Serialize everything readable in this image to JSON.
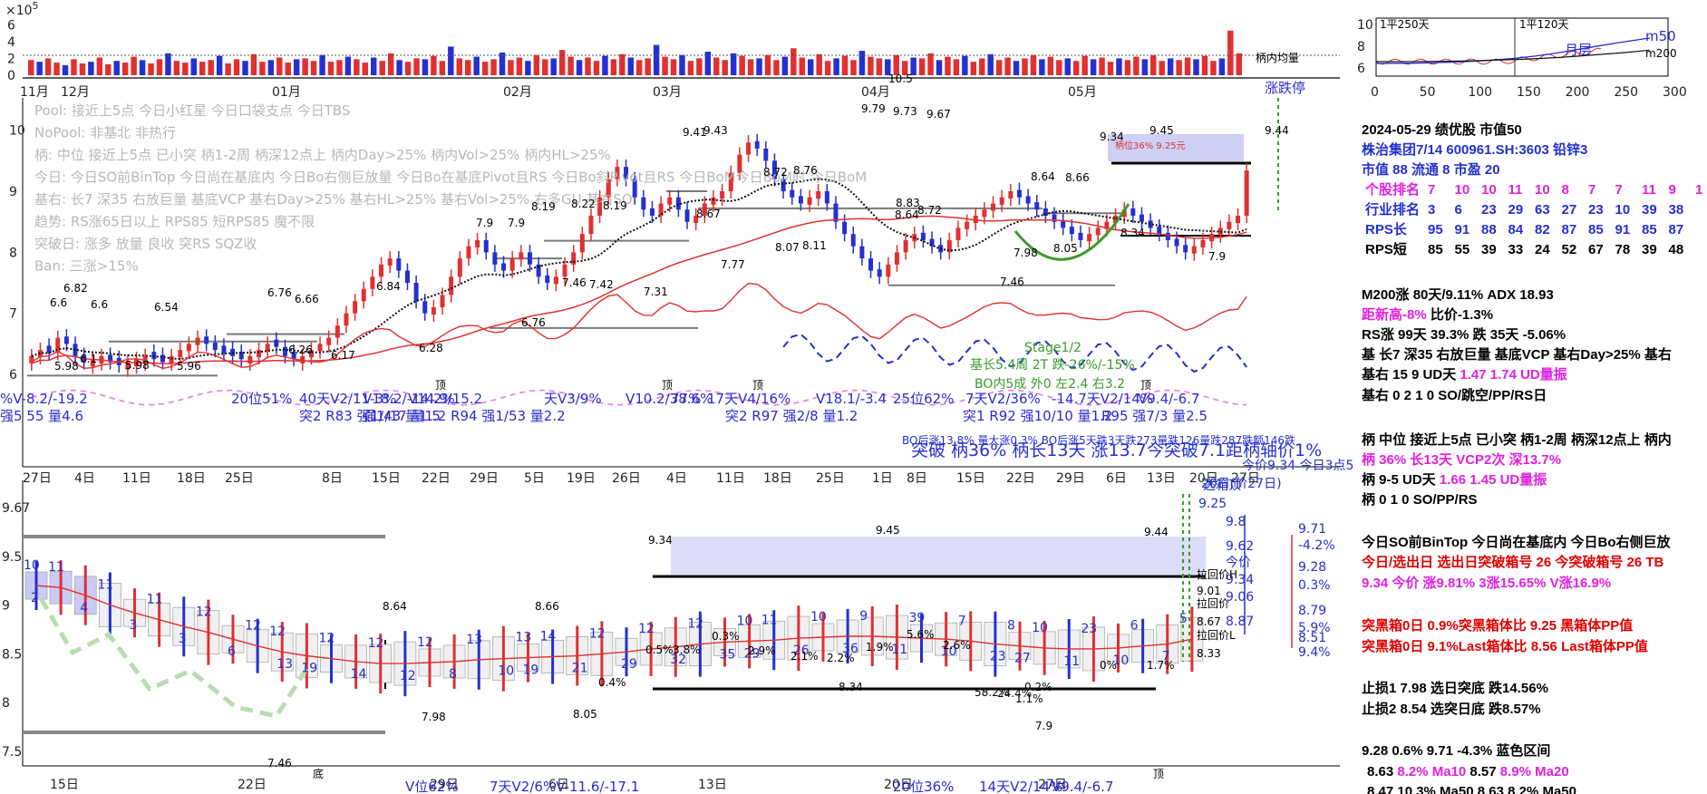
{
  "chart_data": [
    {
      "type": "bar",
      "panel": "volume",
      "multiplier_label": "×10",
      "multiplier_exp": "5",
      "yticks": [
        "6",
        "4",
        "2",
        "0"
      ],
      "ylim": [
        0,
        7
      ],
      "month_labels": [
        "11月",
        "12月",
        "01月",
        "02月",
        "03月",
        "04月",
        "05月"
      ],
      "avg_label": "柄内均量",
      "values": [
        1.8,
        1.6,
        2.0,
        1.5,
        1.2,
        1.9,
        1.4,
        1.6,
        2.1,
        1.3,
        1.7,
        1.5,
        2.2,
        1.8,
        1.4,
        1.9,
        2.6,
        1.7,
        1.5,
        2.0,
        1.6,
        1.8,
        2.3,
        1.4,
        1.9,
        1.7,
        2.5,
        1.6,
        1.8,
        2.1,
        1.5,
        1.9,
        2.0,
        1.7,
        2.4,
        1.6,
        1.8,
        2.2,
        1.9,
        1.5,
        2.1,
        1.7,
        2.6,
        1.8,
        1.6,
        2.0,
        1.9,
        2.3,
        1.7,
        3.4,
        2.0,
        1.8,
        2.2,
        1.6,
        1.9,
        2.7,
        1.8,
        2.1,
        1.7,
        2.4,
        1.9,
        2.0,
        3.0,
        2.2,
        1.8,
        2.1,
        1.7,
        2.3,
        1.9,
        2.5,
        2.1,
        1.8,
        2.0,
        3.6,
        2.2,
        1.9,
        2.4,
        1.7,
        2.0,
        2.8,
        2.1,
        1.8,
        2.6,
        2.3,
        1.9,
        2.0,
        2.4,
        1.8,
        2.2,
        3.2,
        2.1,
        1.9,
        2.5,
        1.7,
        2.0,
        2.3,
        1.8,
        2.9,
        2.2,
        2.0,
        1.9,
        2.4,
        1.7,
        2.1,
        2.0,
        2.6,
        1.8,
        2.2,
        1.9,
        2.3,
        1.6,
        2.0,
        2.5,
        1.8,
        2.1,
        1.7,
        2.0,
        2.4,
        1.9,
        2.2,
        1.8,
        2.0,
        1.7,
        2.3,
        1.9,
        2.1,
        1.6,
        2.0,
        1.8,
        2.2,
        1.9,
        2.4,
        1.7,
        2.0,
        1.8,
        2.1,
        1.9,
        2.3,
        1.7,
        2.0,
        5.3,
        2.6
      ]
    },
    {
      "type": "line",
      "panel": "price-daily",
      "yticks": [
        "10",
        "9",
        "8",
        "7",
        "6"
      ],
      "ylim": [
        5.6,
        10.5
      ],
      "close": [
        6.3,
        6.4,
        6.35,
        6.6,
        6.5,
        6.3,
        6.2,
        6.25,
        6.3,
        6.2,
        6.15,
        6.2,
        6.25,
        6.3,
        6.25,
        6.2,
        6.3,
        6.4,
        6.5,
        6.6,
        6.5,
        6.4,
        6.35,
        6.3,
        6.25,
        6.3,
        6.4,
        6.5,
        6.45,
        6.3,
        6.25,
        6.3,
        6.4,
        6.5,
        6.6,
        6.8,
        7.0,
        7.2,
        7.4,
        7.6,
        7.8,
        7.9,
        7.7,
        7.5,
        7.2,
        7.0,
        7.1,
        7.3,
        7.6,
        7.9,
        8.1,
        8.2,
        8.0,
        7.8,
        7.7,
        7.9,
        8.0,
        7.8,
        7.6,
        7.5,
        7.6,
        7.8,
        8.0,
        8.3,
        8.6,
        8.9,
        9.2,
        9.4,
        9.2,
        8.9,
        8.7,
        8.6,
        8.8,
        8.9,
        8.7,
        8.5,
        8.6,
        8.8,
        8.9,
        9.0,
        9.3,
        9.6,
        9.8,
        9.7,
        9.5,
        9.2,
        9.0,
        8.9,
        8.8,
        8.9,
        9.0,
        8.8,
        8.5,
        8.3,
        8.1,
        7.9,
        7.7,
        7.6,
        7.8,
        8.0,
        8.2,
        8.3,
        8.2,
        8.1,
        8.0,
        8.2,
        8.4,
        8.5,
        8.6,
        8.7,
        8.8,
        8.9,
        9.0,
        8.9,
        8.8,
        8.7,
        8.6,
        8.5,
        8.4,
        8.3,
        8.2,
        8.3,
        8.4,
        8.5,
        8.6,
        8.7,
        8.6,
        8.5,
        8.4,
        8.3,
        8.2,
        8.1,
        8.0,
        8.1,
        8.2,
        8.3,
        8.4,
        8.5,
        8.6,
        9.34
      ],
      "price_labels": [
        "6.6",
        "6.82",
        "6.6",
        "6.54",
        "5.98",
        "6.1",
        "5.98",
        "5.96",
        "6.76",
        "6.66",
        "6.26",
        "6.17",
        "6.84",
        "6.28",
        "7.9",
        "7.9",
        "8.19",
        "8.22",
        "8.19",
        "7.46",
        "7.42",
        "7.31",
        "9.41",
        "9.43",
        "8.67",
        "7.77",
        "8.72",
        "8.76",
        "8.07",
        "8.11",
        "9.79",
        "9.73",
        "9.67",
        "8.83",
        "8.72",
        "8.64",
        "8.64",
        "8.66",
        "7.98",
        "8.05",
        "7.46",
        "9.34",
        "9.45",
        "9.44",
        "8.34",
        "7.9",
        "6.76",
        "10.5"
      ],
      "date_ticks": [
        "27日",
        "4日",
        "11日",
        "18日",
        "25日",
        "8日",
        "15日",
        "22日",
        "29日",
        "5日",
        "19日",
        "26日",
        "4日",
        "11日",
        "18日",
        "25日",
        "1日",
        "8日",
        "15日",
        "22日",
        "29日",
        "6日",
        "13日",
        "20日",
        "27日"
      ],
      "overlay_text": [
        "Pool: 接近上5点 今日小红星 今日口袋支点 今日TBS",
        "NoPool: 非基北 非热行",
        "柄: 中位 接近上5点 已小突 柄1-2周 柄深12点上 柄内Day>25% 柄内Vol>25% 柄内HL>25%",
        "今日: 今日SO前BinTop 今日尚在基底内 今日Bo右侧巨放量 今日Bo在基底Pivot且RS 今日Bo斜Pivot且RS 今日BoM今日BoM时 今日BoM",
        "基右: 长7 深35 右放巨量 基底VCP 基右Day>25% 基右HL>25% 基右Vol>25% 右多GU 基右SO",
        "趋势: RS涨65日以上 RPS85 短RPS85 魔不限",
        "突破日: 涨多 放量 良收 突RS SQZ收",
        "Ban: 三涨>15%"
      ],
      "top_right_label": "涨跌停",
      "handle_box_label": "柄位36% 9.25元",
      "annotations": [
        "Stage1/2",
        "基长5.4周 2T 跌-26%/-15%",
        "BO内5成 外0 左2.4 右3.2",
        "突破 柄36% 柄长13天 涨13.7今突破7.1距柄轴价1%",
        "BO后涨13.8% 量大涨0.3% BO后涨5天跌3天跌273量跌126量跌287跌额146跌"
      ],
      "period_stats": [
        "%V-8.2/-19.2",
        "强5 55 量4.6",
        "20位51%",
        "40天V2/11-3%",
        "V18.2/-14.2%",
        "V14.9/15.2",
        "天V3/9%",
        "V10.2/38.6%",
        "77%",
        "17天V4/16%",
        "V18.1/-3.4",
        "突2 R83 强1/43 量1.5",
        "强1/17 量1.2 R94 强1/53 量2.2",
        "突2 R97 强2/8 量1.2",
        "25位62%",
        "7天V2/36%",
        "-14.7天V2/14%",
        "V9.4/-6.7",
        "突1 R92 强10/10 量1.2",
        "R95 强7/3 量2.5"
      ],
      "top_labels": [
        "顶",
        "顶",
        "顶",
        "顶"
      ]
    },
    {
      "type": "line",
      "panel": "price-weekly",
      "yticks": [
        "9.5",
        "9",
        "8.5",
        "8",
        "7.5"
      ],
      "ylim": [
        7.35,
        10.0
      ],
      "top_left": "9.67",
      "ma_curve": [
        9.2,
        9.18,
        9.1,
        9.0,
        8.92,
        8.85,
        8.78,
        8.72,
        8.65,
        8.58,
        8.52,
        8.48,
        8.45,
        8.42,
        8.4,
        8.4,
        8.41,
        8.42,
        8.44,
        8.45,
        8.46,
        8.47,
        8.48,
        8.5,
        8.52,
        8.55,
        8.57,
        8.6,
        8.62,
        8.63,
        8.64,
        8.66,
        8.67,
        8.68,
        8.68,
        8.67,
        8.66,
        8.65,
        8.63,
        8.6,
        8.58,
        8.56,
        8.55,
        8.55,
        8.56,
        8.58,
        8.6,
        8.65
      ],
      "bar_numbers": [
        "10",
        "2",
        "11",
        "4",
        "11",
        "3",
        "11",
        "3",
        "12",
        "6",
        "12",
        "13",
        "12",
        "19",
        "12",
        "14",
        "12",
        "12",
        "12",
        "8",
        "13",
        "10",
        "13",
        "19",
        "14",
        "21",
        "12",
        "29",
        "12",
        "32",
        "12",
        "35",
        "10",
        "29",
        "11",
        "26",
        "10",
        "36",
        "9",
        "11",
        "39",
        "10",
        "7",
        "23",
        "8",
        "27",
        "10",
        "11",
        "23",
        "10",
        "6",
        "7",
        "5"
      ],
      "pct_labels": [
        "0.5%",
        "3.8%",
        "0.3%",
        "2.9%",
        "2.1%",
        "2.2%",
        "1.9%",
        "5.6%",
        "2.6%",
        "0.4%",
        "0.2%",
        "0%",
        "1.7%",
        "1.1%",
        "58.2%",
        "24.4%"
      ],
      "price_labels": [
        "8.64",
        "8.66",
        "9.34",
        "9.45",
        "9.44",
        "7.98",
        "8.05",
        "7.46",
        "8.34",
        "7.9"
      ],
      "date_ticks": [
        "15日",
        "22日",
        "29日",
        "6日",
        "13日",
        "20日",
        "27日"
      ],
      "right_panel": {
        "top_label": "逃箱顶",
        "top_value": "9.25",
        "values": [
          "9.8",
          "9.62",
          "今价",
          "9.34",
          "9.06",
          "8.87"
        ],
        "pct_values": [
          "9.71",
          "-4.2%",
          "9.28",
          "0.3%",
          "8.79",
          "5.9%",
          "8.51",
          "9.4%"
        ],
        "labels": [
          "拉回价H",
          "9.01",
          "拉回价",
          "8.67",
          "拉回价L",
          "8.33"
        ],
        "small_top": "今价9.34 今日3点5",
        "date_small": "20日(价27日)"
      },
      "bottom_labels": [
        "底",
        "顶"
      ],
      "bottom_stats": [
        "V位62%",
        "7天V2/6%V-11.6/-17.1",
        "20位36%",
        "14天V2/14%",
        "V9.4/-6.7"
      ]
    },
    {
      "type": "line",
      "panel": "mini",
      "xticks": [
        "0",
        "50",
        "100",
        "150",
        "200",
        "250",
        "300"
      ],
      "yticks": [
        "10",
        "8",
        "6"
      ],
      "labels": [
        "1平250天",
        "1平120天",
        "月层"
      ],
      "legend": [
        "m50",
        "m200"
      ]
    }
  ],
  "info_panel": {
    "header": "2024-05-29 绩优股 市值50",
    "company": "株治集团7/14 600961.SH:3603 铅锌3",
    "market": "市值 88 流通 8 市盈 20",
    "rank_rows": [
      {
        "label": "个股排名",
        "values": [
          "7",
          "10",
          "10",
          "11",
          "10",
          "8",
          "7",
          "7",
          "11",
          "9",
          "1"
        ]
      },
      {
        "label": "行业排名",
        "values": [
          "3",
          "6",
          "23",
          "29",
          "63",
          "27",
          "23",
          "10",
          "39",
          "38"
        ]
      },
      {
        "label": "RPS长",
        "values": [
          "95",
          "91",
          "88",
          "84",
          "82",
          "87",
          "85",
          "91",
          "85",
          "87"
        ]
      },
      {
        "label": "RPS短",
        "values": [
          "85",
          "55",
          "39",
          "33",
          "24",
          "52",
          "67",
          "78",
          "39",
          "48"
        ]
      }
    ],
    "lines": [
      {
        "text": "M200涨 80天/9.11%  ADX 18.93",
        "color": "#000"
      },
      {
        "text": "距新高-8%",
        "color": "#e020e0",
        "tail": "  比价-1.3%"
      },
      {
        "text": "RS涨 99天 39.3% 跌 35天 -5.06%",
        "color": "#000"
      },
      {
        "text": "基 长7 深35 右放巨量 基底VCP 基右Day>25% 基右",
        "color": "#000"
      },
      {
        "text": "基右 15 9 UD天",
        "color": "#000",
        "tail_pink": " 1.47 1.74 UD量振"
      },
      {
        "text": "基右 0 2 1 0 SO/跳空/PP/RS日",
        "color": "#000"
      },
      {
        "text": "柄 中位 接近上5点 已小突 柄1-2周 柄深12点上 柄内",
        "color": "#000"
      },
      {
        "text": "柄 36% 长13天  VCP2次 深13.7%",
        "color": "#e020e0"
      },
      {
        "text": "柄 9-5 UD天",
        "color": "#000",
        "tail_pink": " 1.66 1.45 UD量振"
      },
      {
        "text": "柄 0 1 0 SO/PP/RS",
        "color": "#000"
      },
      {
        "text": "今日SO前BinTop 今日尚在基底内 今日Bo右侧巨放",
        "color": "#000"
      },
      {
        "text": "今日/选出日  选出日突破箱号 26 今突破箱号 26 TB",
        "color": "#e00000"
      },
      {
        "text": "9.34 今价  涨9.81% 3涨15.65% V涨16.9%",
        "color": "#e020e0"
      },
      {
        "text": "突黑箱0日 0.9%突黑箱体比 9.25 黑箱体PP值",
        "color": "#e00000"
      },
      {
        "text": "突黑箱0日 9.1%Last箱体比 8.56 Last箱体PP值",
        "color": "#e00000"
      },
      {
        "text": "止损1 7.98 选日突底  跌14.56%",
        "color": "#000"
      },
      {
        "text": "止损2 8.54 选突日底  跌8.57%",
        "color": "#000"
      },
      {
        "text": "9.28 0.6% 9.71 -4.3% 蓝色区间",
        "color": "#000"
      },
      {
        "text": "8.63",
        "color": "#000",
        "tail_pink": " 8.2% Ma10",
        "tail2": "  8.57",
        "tail3": " 8.9% Ma20"
      },
      {
        "text": "8.47 10.3% Ma50  8.63 8.2% Ma50",
        "color": "#000"
      }
    ]
  },
  "colors": {
    "up": "#e03030",
    "down": "#2430d0",
    "ma": "#1a1a1a",
    "rs": "#e03030",
    "green": "#3a9a2a",
    "pink": "#e020e0",
    "box": "#c9cbf5"
  }
}
